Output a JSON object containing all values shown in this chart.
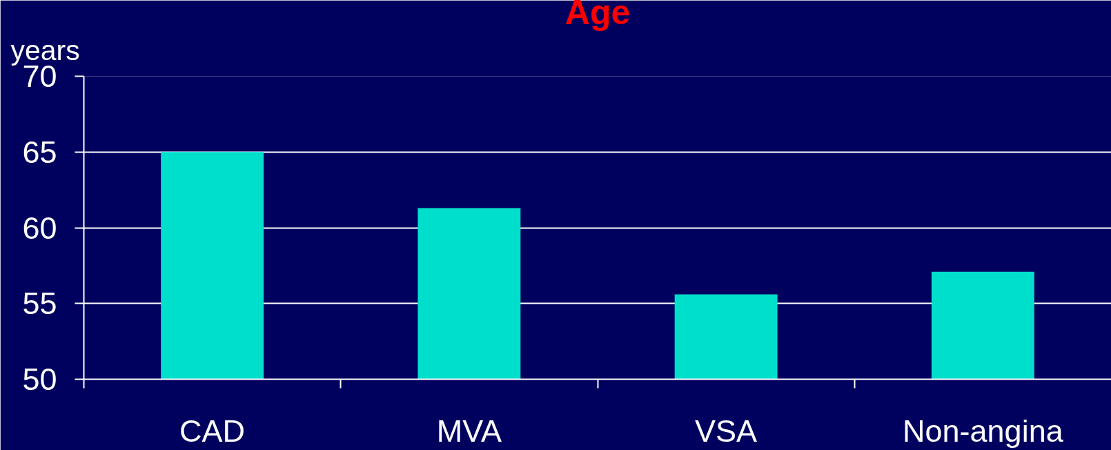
{
  "chart_data": {
    "type": "bar",
    "title": "Age",
    "ylabel": "years",
    "categories": [
      "CAD",
      "MVA",
      "VSA",
      "Non-angina"
    ],
    "values": [
      65.0,
      61.3,
      55.6,
      57.1
    ],
    "color": "#00dfcc",
    "ylim": [
      50,
      70
    ],
    "yticks": [
      50,
      55,
      60,
      65,
      70
    ],
    "grid": "y"
  }
}
